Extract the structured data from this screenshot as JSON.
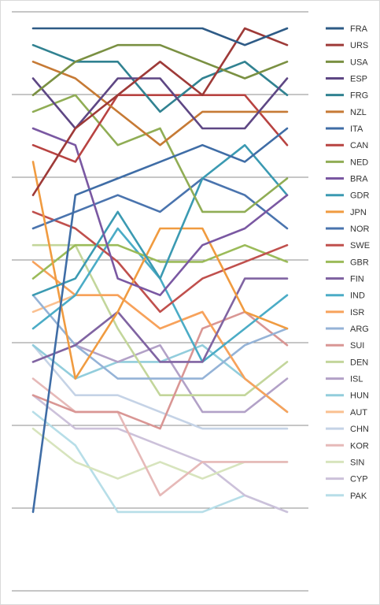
{
  "chart_data": {
    "type": "line",
    "title": "",
    "xlabel": "",
    "ylabel": "",
    "rank_axis": {
      "min": 1,
      "max": 30,
      "inverted": true
    },
    "x": [
      1,
      2,
      3,
      4,
      5,
      6,
      7
    ],
    "grid": "horizontal",
    "legend_position": "right",
    "series": [
      {
        "name": "FRA",
        "color": "#2e5b86",
        "ranks": [
          1,
          1,
          1,
          1,
          1,
          2,
          1
        ]
      },
      {
        "name": "URS",
        "color": "#9e3a38",
        "ranks": [
          11,
          7,
          5,
          3,
          5,
          1,
          2
        ]
      },
      {
        "name": "USA",
        "color": "#7a9042",
        "ranks": [
          5,
          3,
          2,
          2,
          3,
          4,
          3
        ]
      },
      {
        "name": "ESP",
        "color": "#5e4784",
        "ranks": [
          4,
          7,
          4,
          4,
          7,
          7,
          4
        ]
      },
      {
        "name": "FRG",
        "color": "#318291",
        "ranks": [
          2,
          3,
          3,
          6,
          4,
          3,
          5
        ]
      },
      {
        "name": "NZL",
        "color": "#c67a35",
        "ranks": [
          3,
          4,
          6,
          8,
          6,
          6,
          6
        ]
      },
      {
        "name": "ITA",
        "color": "#3f6da6",
        "ranks": [
          30,
          11,
          10,
          9,
          8,
          9,
          7
        ]
      },
      {
        "name": "CAN",
        "color": "#b84341",
        "ranks": [
          8,
          9,
          5,
          5,
          5,
          5,
          8
        ]
      },
      {
        "name": "NED",
        "color": "#90ad55",
        "ranks": [
          6,
          5,
          8,
          7,
          12,
          12,
          10
        ]
      },
      {
        "name": "BRA",
        "color": "#7a58a2",
        "ranks": [
          7,
          8,
          16,
          17,
          14,
          13,
          11
        ]
      },
      {
        "name": "GDR",
        "color": "#3b9ab2",
        "ranks": [
          17,
          16,
          12,
          16,
          10,
          8,
          11
        ]
      },
      {
        "name": "JPN",
        "color": "#f09b40",
        "ranks": [
          9,
          22,
          18,
          13,
          13,
          18,
          19
        ]
      },
      {
        "name": "NOR",
        "color": "#4a74ae",
        "ranks": [
          13,
          12,
          11,
          12,
          10,
          11,
          13
        ]
      },
      {
        "name": "SWE",
        "color": "#c0504d",
        "ranks": [
          12,
          13,
          15,
          18,
          16,
          15,
          14
        ]
      },
      {
        "name": "GBR",
        "color": "#9bbb59",
        "ranks": [
          16,
          14,
          14,
          15,
          15,
          14,
          15
        ]
      },
      {
        "name": "FIN",
        "color": "#8064a2",
        "ranks": [
          21,
          20,
          18,
          21,
          21,
          16,
          16
        ]
      },
      {
        "name": "IND",
        "color": "#4bacc6",
        "ranks": [
          19,
          17,
          13,
          16,
          21,
          19,
          17
        ]
      },
      {
        "name": "ISR",
        "color": "#f7a25b",
        "ranks": [
          15,
          17,
          17,
          19,
          18,
          22,
          24
        ]
      },
      {
        "name": "ARG",
        "color": "#95b3d7",
        "ranks": [
          17,
          20,
          22,
          22,
          22,
          20,
          19
        ]
      },
      {
        "name": "SUI",
        "color": "#d99694",
        "ranks": [
          23,
          24,
          24,
          25,
          19,
          18,
          20
        ]
      },
      {
        "name": "DEN",
        "color": "#c3d69b",
        "ranks": [
          14,
          14,
          19,
          23,
          23,
          23,
          21
        ]
      },
      {
        "name": "ISL",
        "color": "#b2a1c7",
        "ranks": [
          21,
          20,
          21,
          20,
          24,
          24,
          22
        ]
      },
      {
        "name": "HUN",
        "color": "#92cddc",
        "ranks": [
          20,
          22,
          21,
          21,
          20,
          22,
          24
        ]
      },
      {
        "name": "AUT",
        "color": "#fac090",
        "ranks": [
          18,
          17,
          17,
          19,
          18,
          22,
          24
        ]
      },
      {
        "name": "CHN",
        "color": "#c5d3e6",
        "ranks": [
          20,
          23,
          23,
          24,
          25,
          25,
          25
        ]
      },
      {
        "name": "KOR",
        "color": "#e6b9b8",
        "ranks": [
          22,
          24,
          24,
          29,
          27,
          27,
          27
        ]
      },
      {
        "name": "SIN",
        "color": "#d7e4bd",
        "ranks": [
          25,
          27,
          28,
          27,
          28,
          27,
          27
        ]
      },
      {
        "name": "CYP",
        "color": "#ccc1da",
        "ranks": [
          23,
          25,
          25,
          26,
          27,
          29,
          30
        ]
      },
      {
        "name": "PAK",
        "color": "#b7dee8",
        "ranks": [
          24,
          26,
          30,
          30,
          30,
          29,
          30
        ]
      }
    ]
  }
}
